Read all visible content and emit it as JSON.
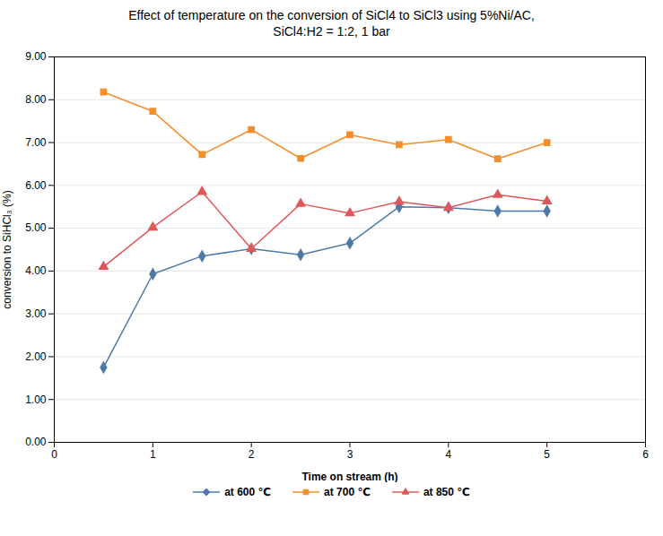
{
  "chart_data": {
    "type": "line",
    "title": "Effect of temperature on the conversion of SiCl4 to SiCl3 using 5%Ni/AC,\nSiCl4:H2 = 1:2, 1 bar",
    "x_label": "Time on stream (h)",
    "y_label": "conversion to SiHCl₃ (%)",
    "x": [
      0.5,
      1.0,
      1.5,
      2.0,
      2.5,
      3.0,
      3.5,
      4.0,
      4.5,
      5.0
    ],
    "series": [
      {
        "name": "at 600 ℃",
        "marker": "diamond",
        "values": [
          1.75,
          3.93,
          4.35,
          4.52,
          4.38,
          4.65,
          5.5,
          5.48,
          5.4,
          5.4
        ]
      },
      {
        "name": "at 700 ℃",
        "marker": "square",
        "values": [
          8.18,
          7.73,
          6.72,
          7.3,
          6.63,
          7.18,
          6.95,
          7.07,
          6.62,
          7.0
        ]
      },
      {
        "name": "at 850 ℃",
        "marker": "triangle",
        "values": [
          4.1,
          5.02,
          5.85,
          4.52,
          5.57,
          5.35,
          5.62,
          5.48,
          5.78,
          5.63
        ]
      }
    ],
    "xlim": [
      0,
      6
    ],
    "xticks": [
      0,
      1,
      2,
      3,
      4,
      5,
      6
    ],
    "ylim": [
      0.0,
      9.0
    ],
    "yticks": [
      {
        "value": 0,
        "label": "0.00"
      },
      {
        "value": 1,
        "label": "1.00"
      },
      {
        "value": 2,
        "label": "2.00"
      },
      {
        "value": 3,
        "label": "3.00"
      },
      {
        "value": 4,
        "label": "4.00"
      },
      {
        "value": 5,
        "label": "5.00"
      },
      {
        "value": 6,
        "label": "6.00"
      },
      {
        "value": 7,
        "label": "7.00"
      },
      {
        "value": 8,
        "label": "8.00"
      },
      {
        "value": 9,
        "label": "9.00"
      }
    ],
    "grid": "y",
    "legend": "bottom"
  }
}
